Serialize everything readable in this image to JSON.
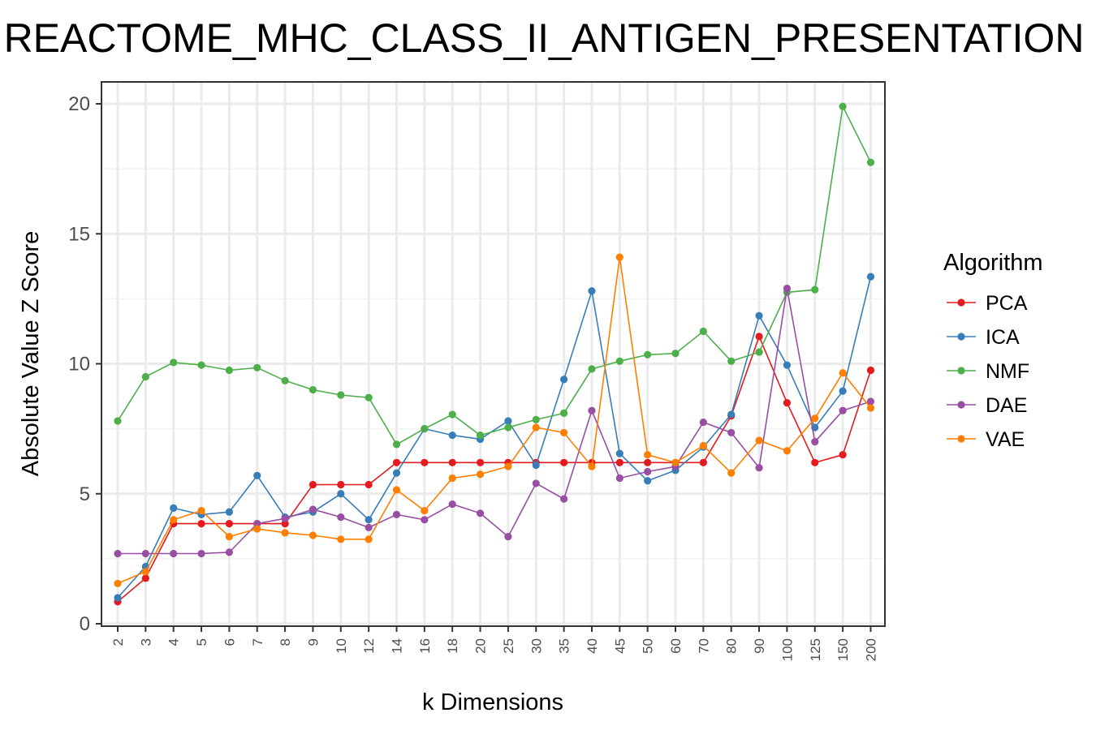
{
  "chart_data": {
    "type": "line",
    "title": "REACTOME_MHC_CLASS_II_ANTIGEN_PRESENTATION",
    "xlabel": "k Dimensions",
    "ylabel": "Absolute Value Z Score",
    "ylim": [
      0,
      20.8
    ],
    "yticks": [
      0,
      5,
      10,
      15,
      20
    ],
    "grid": true,
    "legend_title": "Algorithm",
    "legend_position": "right",
    "categories": [
      "2",
      "3",
      "4",
      "5",
      "6",
      "7",
      "8",
      "9",
      "10",
      "12",
      "14",
      "16",
      "18",
      "20",
      "25",
      "30",
      "35",
      "40",
      "45",
      "50",
      "60",
      "70",
      "80",
      "90",
      "100",
      "125",
      "150",
      "200"
    ],
    "series": [
      {
        "name": "PCA",
        "color": "#E41A1C",
        "values": [
          0.85,
          1.75,
          3.85,
          3.85,
          3.85,
          3.85,
          3.85,
          5.35,
          5.35,
          5.35,
          6.2,
          6.2,
          6.2,
          6.2,
          6.2,
          6.2,
          6.2,
          6.2,
          6.2,
          6.2,
          6.2,
          6.2,
          8.0,
          11.05,
          8.5,
          6.2,
          6.5,
          9.75
        ]
      },
      {
        "name": "ICA",
        "color": "#377EB8",
        "values": [
          1.0,
          2.2,
          4.45,
          4.2,
          4.3,
          5.7,
          4.1,
          4.3,
          5.0,
          4.0,
          5.8,
          7.5,
          7.25,
          7.1,
          7.8,
          6.1,
          9.4,
          12.8,
          6.55,
          5.5,
          5.9,
          6.8,
          8.05,
          11.85,
          9.95,
          7.55,
          8.95,
          13.35
        ]
      },
      {
        "name": "NMF",
        "color": "#4DAF4A",
        "values": [
          7.8,
          9.5,
          10.05,
          9.95,
          9.75,
          9.85,
          9.35,
          9.0,
          8.8,
          8.7,
          6.9,
          7.5,
          8.05,
          7.25,
          7.55,
          7.85,
          8.1,
          9.8,
          10.1,
          10.35,
          10.4,
          11.25,
          10.1,
          10.45,
          12.75,
          12.85,
          19.9,
          17.75
        ]
      },
      {
        "name": "DAE",
        "color": "#984EA3",
        "values": [
          2.7,
          2.7,
          2.7,
          2.7,
          2.75,
          3.85,
          4.05,
          4.4,
          4.1,
          3.7,
          4.2,
          4.0,
          4.6,
          4.25,
          3.35,
          5.4,
          4.8,
          8.2,
          5.6,
          5.85,
          6.05,
          7.75,
          7.35,
          6.0,
          12.9,
          7.0,
          8.2,
          8.55
        ]
      },
      {
        "name": "VAE",
        "color": "#FF7F00",
        "values": [
          1.55,
          2.0,
          4.0,
          4.35,
          3.35,
          3.65,
          3.5,
          3.4,
          3.25,
          3.25,
          5.15,
          4.35,
          5.6,
          5.75,
          6.05,
          7.55,
          7.35,
          6.05,
          14.1,
          6.5,
          6.2,
          6.85,
          5.8,
          7.05,
          6.65,
          7.9,
          9.65,
          8.3
        ]
      }
    ]
  }
}
